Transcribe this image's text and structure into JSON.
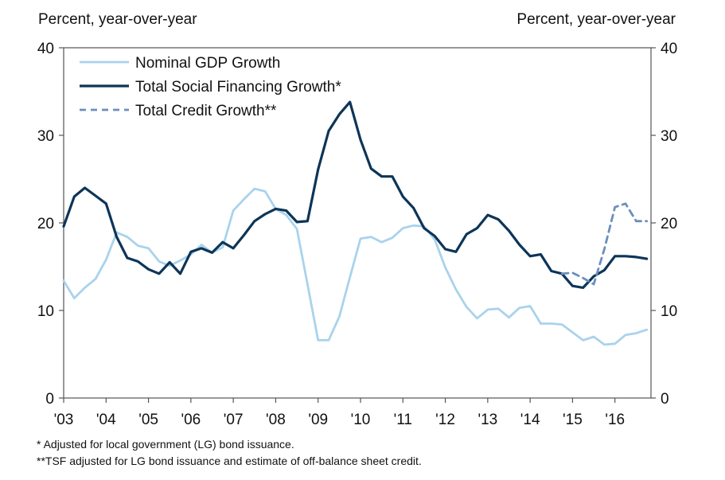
{
  "chart_data": {
    "type": "line",
    "left_axis_label": "Percent, year-over-year",
    "right_axis_label": "Percent, year-over-year",
    "ylim": [
      0,
      40
    ],
    "y_ticks": [
      "0",
      "10",
      "20",
      "30",
      "40"
    ],
    "xlim": [
      2003,
      2016.85
    ],
    "x_tick_labels": [
      "'03",
      "'04",
      "'05",
      "'06",
      "'07",
      "'08",
      "'09",
      "'10",
      "'11",
      "'12",
      "'13",
      "'14",
      "'15",
      "'16"
    ],
    "grid": false,
    "legend_position": "top-left",
    "series": [
      {
        "name": "Nominal GDP Growth",
        "color": "#a9d3ec",
        "style": "solid",
        "x": [
          2003.0,
          2003.25,
          2003.5,
          2003.75,
          2004.0,
          2004.25,
          2004.5,
          2004.75,
          2005.0,
          2005.25,
          2005.5,
          2005.75,
          2006.0,
          2006.25,
          2006.5,
          2006.75,
          2007.0,
          2007.25,
          2007.5,
          2007.75,
          2008.0,
          2008.25,
          2008.5,
          2008.75,
          2009.0,
          2009.25,
          2009.5,
          2009.75,
          2010.0,
          2010.25,
          2010.5,
          2010.75,
          2011.0,
          2011.25,
          2011.5,
          2011.75,
          2012.0,
          2012.25,
          2012.5,
          2012.75,
          2013.0,
          2013.25,
          2013.5,
          2013.75,
          2014.0,
          2014.25,
          2014.5,
          2014.75,
          2015.0,
          2015.25,
          2015.5,
          2015.75,
          2016.0,
          2016.25,
          2016.5,
          2016.75
        ],
        "values": [
          13.4,
          11.4,
          12.6,
          13.6,
          15.8,
          18.9,
          18.4,
          17.4,
          17.1,
          15.6,
          15.1,
          15.7,
          16.4,
          17.5,
          16.6,
          17.2,
          21.4,
          22.7,
          23.9,
          23.6,
          21.6,
          20.9,
          19.3,
          13.0,
          6.6,
          6.6,
          9.3,
          13.8,
          18.2,
          18.4,
          17.8,
          18.3,
          19.4,
          19.7,
          19.6,
          18.1,
          14.9,
          12.4,
          10.4,
          9.1,
          10.1,
          10.2,
          9.2,
          10.3,
          10.5,
          8.5,
          8.5,
          8.4,
          7.5,
          6.6,
          7.0,
          6.1,
          6.2,
          7.2,
          7.4,
          7.8
        ]
      },
      {
        "name": "Total Social Financing Growth*",
        "color": "#0c3558",
        "style": "solid",
        "x": [
          2003.0,
          2003.25,
          2003.5,
          2003.75,
          2004.0,
          2004.25,
          2004.5,
          2004.75,
          2005.0,
          2005.25,
          2005.5,
          2005.75,
          2006.0,
          2006.25,
          2006.5,
          2006.75,
          2007.0,
          2007.25,
          2007.5,
          2007.75,
          2008.0,
          2008.25,
          2008.5,
          2008.75,
          2009.0,
          2009.25,
          2009.5,
          2009.75,
          2010.0,
          2010.25,
          2010.5,
          2010.75,
          2011.0,
          2011.25,
          2011.5,
          2011.75,
          2012.0,
          2012.25,
          2012.5,
          2012.75,
          2013.0,
          2013.25,
          2013.5,
          2013.75,
          2014.0,
          2014.25,
          2014.5,
          2014.75,
          2015.0,
          2015.25,
          2015.5,
          2015.75,
          2016.0,
          2016.25,
          2016.5,
          2016.75
        ],
        "values": [
          19.6,
          23.0,
          24.0,
          23.1,
          22.2,
          18.4,
          16.0,
          15.6,
          14.7,
          14.2,
          15.5,
          14.2,
          16.7,
          17.1,
          16.6,
          17.8,
          17.1,
          18.6,
          20.2,
          21.0,
          21.6,
          21.4,
          20.1,
          20.2,
          26.1,
          30.5,
          32.4,
          33.8,
          29.5,
          26.2,
          25.3,
          25.3,
          23.0,
          21.7,
          19.4,
          18.5,
          17.0,
          16.7,
          18.7,
          19.4,
          20.9,
          20.4,
          19.1,
          17.5,
          16.2,
          16.4,
          14.5,
          14.2,
          12.8,
          12.6,
          13.9,
          14.6,
          16.2,
          16.2,
          16.1,
          15.9
        ]
      },
      {
        "name": "Total Credit Growth**",
        "color": "#6b8fbd",
        "style": "dashed",
        "x": [
          2014.75,
          2015.0,
          2015.25,
          2015.5,
          2015.75,
          2016.0,
          2016.25,
          2016.5,
          2016.75
        ],
        "values": [
          14.2,
          14.3,
          13.7,
          13.0,
          17.0,
          21.8,
          22.2,
          20.2,
          20.2
        ]
      }
    ]
  },
  "footnotes": {
    "note1": "* Adjusted for local government (LG) bond issuance.",
    "note2": "**TSF adjusted for LG bond issuance and estimate of off-balance sheet credit."
  }
}
